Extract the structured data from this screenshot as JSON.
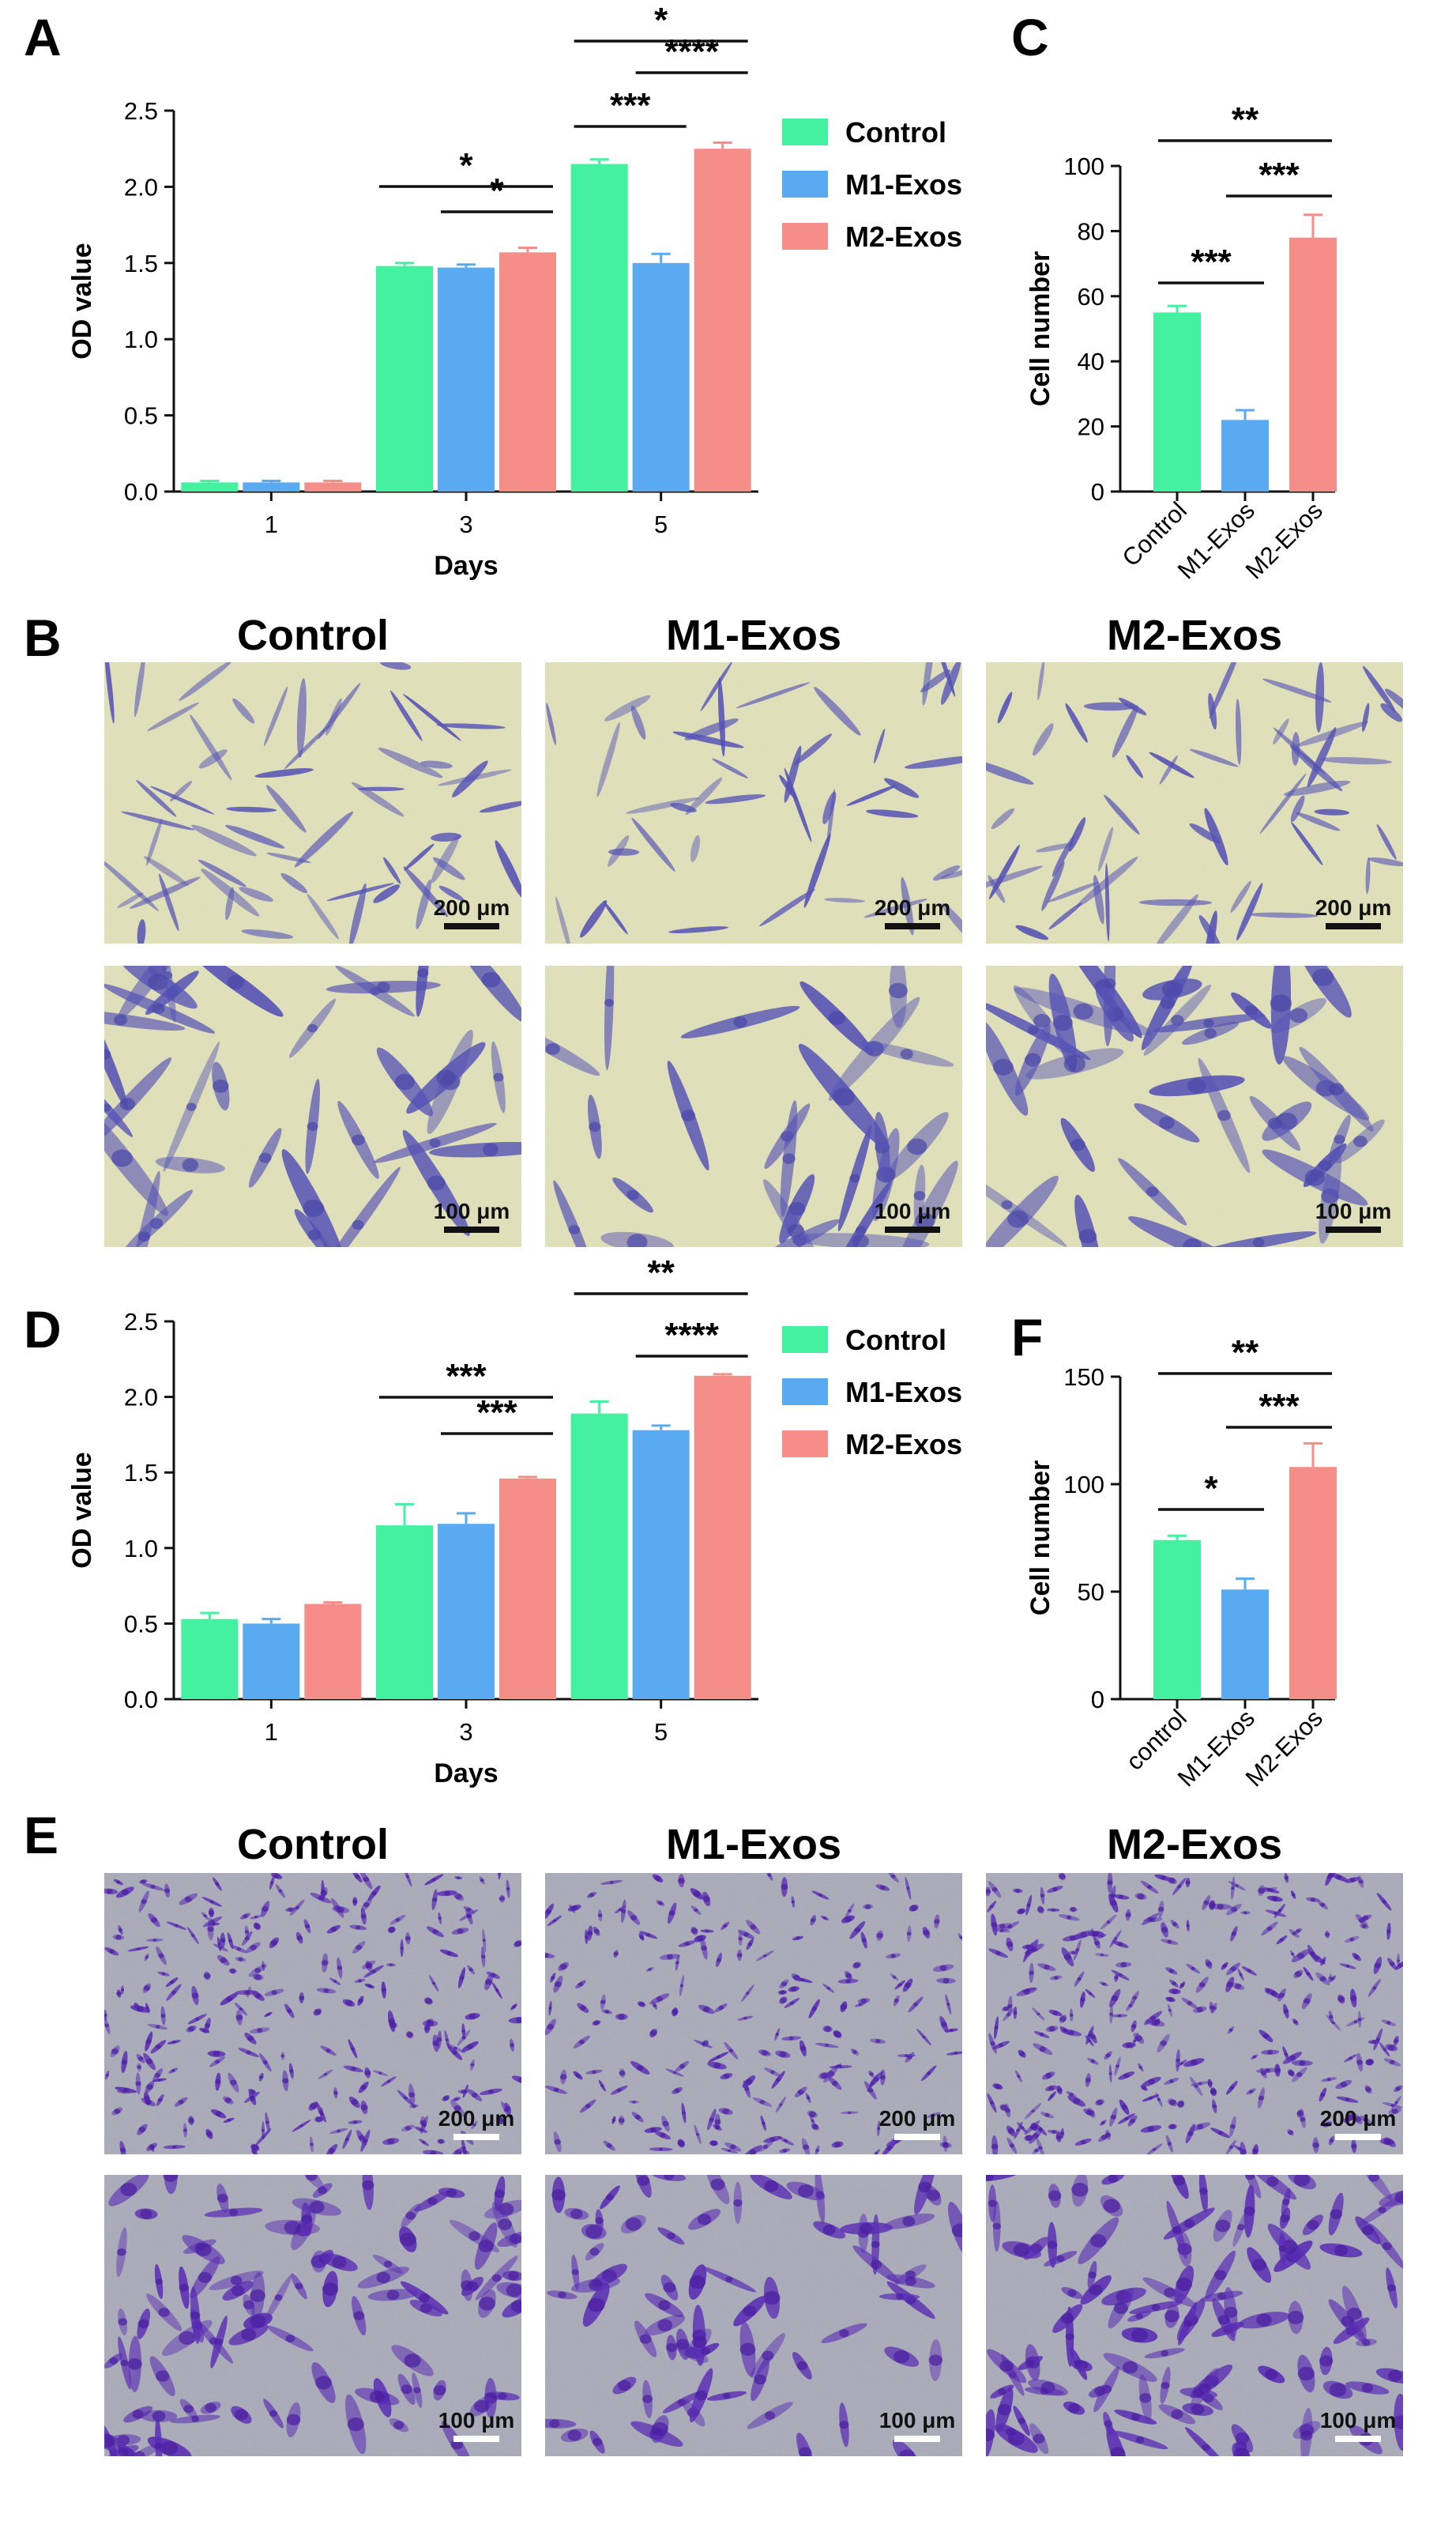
{
  "panels": {
    "A": "A",
    "B": "B",
    "C": "C",
    "D": "D",
    "E": "E",
    "F": "F"
  },
  "legend": [
    "Control",
    "M1-Exos",
    "M2-Exos"
  ],
  "colors": {
    "Control": "#45f0a0",
    "M1-Exos": "#5aaaf2",
    "M2-Exos": "#f58e88"
  },
  "micrograph_columns": [
    "Control",
    "M1-Exos",
    "M2-Exos"
  ],
  "scale_bars": {
    "upper": "200 μm",
    "lower": "100 μm"
  },
  "chart_data": [
    {
      "id": "A",
      "type": "bar",
      "categories": [
        "1",
        "3",
        "5"
      ],
      "xlabel": "Days",
      "ylabel": "OD value",
      "ylim": [
        0,
        2.5
      ],
      "yticks": [
        0.0,
        0.5,
        1.0,
        1.5,
        2.0,
        2.5
      ],
      "series": [
        {
          "name": "Control",
          "values": [
            0.06,
            1.48,
            2.15
          ],
          "errors": [
            0.01,
            0.02,
            0.03
          ]
        },
        {
          "name": "M1-Exos",
          "values": [
            0.06,
            1.47,
            1.5
          ],
          "errors": [
            0.01,
            0.02,
            0.06
          ]
        },
        {
          "name": "M2-Exos",
          "values": [
            0.06,
            1.57,
            2.25
          ],
          "errors": [
            0.01,
            0.03,
            0.04
          ]
        }
      ],
      "significance": [
        {
          "label": "*",
          "group": "3",
          "from": "Control",
          "to": "M2-Exos"
        },
        {
          "label": "*",
          "group": "3",
          "from": "M1-Exos",
          "to": "M2-Exos"
        },
        {
          "label": "*",
          "group": "5",
          "from": "Control",
          "to": "M2-Exos"
        },
        {
          "label": "****",
          "group": "5",
          "from": "M1-Exos",
          "to": "M2-Exos"
        },
        {
          "label": "***",
          "group": "5",
          "from": "Control",
          "to": "M1-Exos"
        }
      ]
    },
    {
      "id": "C",
      "type": "bar",
      "categories": [
        "Control",
        "M1-Exos",
        "M2-Exos"
      ],
      "xlabel": "",
      "ylabel": "Cell number",
      "ylim": [
        0,
        100
      ],
      "yticks": [
        0,
        20,
        40,
        60,
        80,
        100
      ],
      "values": [
        55,
        22,
        78
      ],
      "errors": [
        2,
        3,
        7
      ],
      "significance": [
        {
          "label": "**",
          "from": "Control",
          "to": "M2-Exos"
        },
        {
          "label": "***",
          "from": "Control",
          "to": "M1-Exos"
        },
        {
          "label": "***",
          "from": "M1-Exos",
          "to": "M2-Exos"
        }
      ]
    },
    {
      "id": "D",
      "type": "bar",
      "categories": [
        "1",
        "3",
        "5"
      ],
      "xlabel": "Days",
      "ylabel": "OD value",
      "ylim": [
        0,
        2.5
      ],
      "yticks": [
        0.0,
        0.5,
        1.0,
        1.5,
        2.0,
        2.5
      ],
      "series": [
        {
          "name": "Control",
          "values": [
            0.53,
            1.15,
            1.89
          ],
          "errors": [
            0.04,
            0.14,
            0.08
          ]
        },
        {
          "name": "M1-Exos",
          "values": [
            0.5,
            1.16,
            1.78
          ],
          "errors": [
            0.03,
            0.07,
            0.03
          ]
        },
        {
          "name": "M2-Exos",
          "values": [
            0.63,
            1.46,
            2.14
          ],
          "errors": [
            0.01,
            0.01,
            0.01
          ]
        }
      ],
      "significance": [
        {
          "label": "***",
          "group": "3",
          "from": "Control",
          "to": "M2-Exos"
        },
        {
          "label": "***",
          "group": "3",
          "from": "M1-Exos",
          "to": "M2-Exos"
        },
        {
          "label": "**",
          "group": "5",
          "from": "Control",
          "to": "M2-Exos"
        },
        {
          "label": "****",
          "group": "5",
          "from": "M1-Exos",
          "to": "M2-Exos"
        }
      ]
    },
    {
      "id": "F",
      "type": "bar",
      "categories": [
        "control",
        "M1-Exos",
        "M2-Exos"
      ],
      "xlabel": "",
      "ylabel": "Cell number",
      "ylim": [
        0,
        150
      ],
      "yticks": [
        0,
        50,
        100,
        150
      ],
      "values": [
        74,
        51,
        108
      ],
      "errors": [
        2,
        5,
        11
      ],
      "significance": [
        {
          "label": "**",
          "from": "control",
          "to": "M2-Exos"
        },
        {
          "label": "*",
          "from": "control",
          "to": "M1-Exos"
        },
        {
          "label": "***",
          "from": "M1-Exos",
          "to": "M2-Exos"
        }
      ]
    }
  ]
}
